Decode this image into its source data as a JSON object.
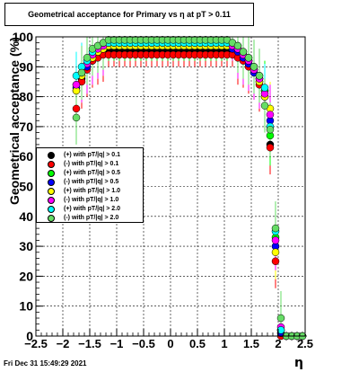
{
  "footer": "Fri Dec 31 15:49:29 2021",
  "chart_data": {
    "type": "scatter",
    "title": "Geometrical acceptance for Primary vs η at pT > 0.11",
    "xlabel": "η",
    "ylabel": "Geometrical acceptance (%)",
    "xlim": [
      -2.5,
      2.5
    ],
    "ylim": [
      0,
      100
    ],
    "xticks": [
      "−2.5",
      "−2",
      "−1.5",
      "−1",
      "−0.5",
      "0",
      "0.5",
      "1",
      "1.5",
      "2",
      "2.5"
    ],
    "yticks": [
      "0",
      "10",
      "20",
      "30",
      "40",
      "50",
      "60",
      "70",
      "80",
      "90",
      "100"
    ],
    "grid": true,
    "legend_position": "left-middle",
    "x": [
      -1.75,
      -1.65,
      -1.55,
      -1.45,
      -1.35,
      -1.25,
      -1.15,
      -1.05,
      -0.95,
      -0.85,
      -0.75,
      -0.65,
      -0.55,
      -0.45,
      -0.35,
      -0.25,
      -0.15,
      -0.05,
      0.05,
      0.15,
      0.25,
      0.35,
      0.45,
      0.55,
      0.65,
      0.75,
      0.85,
      0.95,
      1.05,
      1.15,
      1.25,
      1.35,
      1.45,
      1.55,
      1.65,
      1.75,
      1.85,
      1.95,
      2.05,
      2.15,
      2.25,
      2.35,
      2.45
    ],
    "series": [
      {
        "name": "(+) with pT/|q| > 0.1",
        "color": "#000000",
        "values": [
          82,
          86,
          90,
          92,
          94,
          95,
          95,
          95,
          95,
          95,
          95,
          95,
          95,
          95,
          95,
          95,
          95,
          95,
          95,
          95,
          95,
          95,
          95,
          95,
          95,
          95,
          95,
          95,
          95,
          95,
          95,
          94,
          92,
          89,
          86,
          80,
          64,
          30,
          1,
          0,
          0,
          0,
          0
        ]
      },
      {
        "name": "(-) with pT/|q| > 0.1",
        "color": "#ff0000",
        "values": [
          76,
          85,
          89,
          92,
          93,
          94,
          94,
          94,
          94,
          94,
          94,
          94,
          94,
          94,
          94,
          94,
          94,
          94,
          94,
          94,
          94,
          94,
          94,
          94,
          94,
          94,
          94,
          94,
          94,
          94,
          93,
          92,
          90,
          88,
          84,
          82,
          63,
          25,
          0,
          0,
          0,
          0,
          0
        ]
      },
      {
        "name": "(+) with pT/|q| > 0.5",
        "color": "#00ff00",
        "values": [
          84,
          88,
          91,
          94,
          96,
          97,
          97,
          97,
          97,
          97,
          97,
          97,
          97,
          97,
          97,
          97,
          97,
          97,
          97,
          97,
          97,
          97,
          97,
          97,
          97,
          97,
          97,
          97,
          97,
          97,
          96,
          94,
          92,
          89,
          86,
          82,
          67,
          33,
          2,
          0,
          0,
          0,
          0
        ]
      },
      {
        "name": "(-) with pT/|q| > 0.5",
        "color": "#0000ff",
        "values": [
          83,
          87,
          90,
          93,
          95,
          96,
          97,
          97,
          97,
          97,
          97,
          97,
          97,
          97,
          97,
          97,
          97,
          97,
          97,
          97,
          97,
          97,
          97,
          97,
          97,
          97,
          97,
          97,
          97,
          96,
          95,
          93,
          91,
          88,
          85,
          80,
          72,
          30,
          1,
          0,
          0,
          0,
          0
        ]
      },
      {
        "name": "(+) with pT/|q| > 1.0",
        "color": "#ffff00",
        "values": [
          82,
          87,
          91,
          93,
          95,
          96,
          97,
          97,
          97,
          97,
          97,
          97,
          97,
          97,
          97,
          97,
          97,
          97,
          97,
          97,
          97,
          97,
          97,
          97,
          97,
          97,
          97,
          97,
          97,
          97,
          96,
          94,
          92,
          89,
          85,
          80,
          76,
          28,
          2,
          0,
          0,
          0,
          0
        ]
      },
      {
        "name": "(-) with pT/|q| > 1.0",
        "color": "#ff00ff",
        "values": [
          84,
          88,
          91,
          94,
          96,
          97,
          98,
          98,
          98,
          98,
          98,
          98,
          98,
          98,
          98,
          98,
          98,
          98,
          98,
          98,
          98,
          98,
          98,
          98,
          98,
          98,
          98,
          98,
          98,
          97,
          96,
          94,
          92,
          89,
          86,
          81,
          74,
          32,
          3,
          0,
          0,
          0,
          0
        ]
      },
      {
        "name": "(+) with pT/|q| > 2.0",
        "color": "#00ffff",
        "values": [
          87,
          90,
          92,
          95,
          97,
          98,
          98,
          98,
          98,
          98,
          98,
          98,
          98,
          98,
          98,
          98,
          98,
          98,
          98,
          98,
          98,
          98,
          98,
          98,
          98,
          98,
          98,
          98,
          98,
          98,
          97,
          95,
          93,
          90,
          87,
          83,
          70,
          35,
          2,
          0,
          0,
          0,
          0
        ]
      },
      {
        "name": "(-) with pT/|q| > 2.0",
        "color": "#66dd66",
        "values": [
          73,
          88,
          93,
          96,
          97,
          98,
          99,
          99,
          99,
          99,
          99,
          99,
          99,
          99,
          99,
          99,
          99,
          99,
          99,
          99,
          99,
          99,
          99,
          99,
          99,
          99,
          99,
          99,
          99,
          98,
          97,
          95,
          93,
          90,
          87,
          77,
          69,
          36,
          6,
          0,
          0,
          0,
          0
        ]
      }
    ]
  }
}
